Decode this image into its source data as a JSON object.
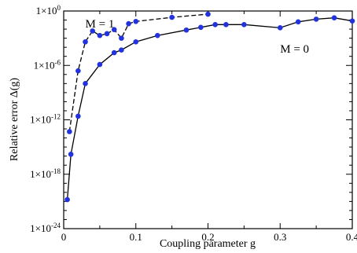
{
  "chart_data": {
    "type": "line",
    "xlabel": "Coupling parameter g",
    "ylabel": "Relative error Δ(g)",
    "xlim": [
      0,
      0.4
    ],
    "ylim_exponent": [
      -24,
      0
    ],
    "yscale": "log",
    "grid": false,
    "marker_color": "#2233dd",
    "x_ticks": [
      {
        "value": 0,
        "label": "0"
      },
      {
        "value": 0.1,
        "label": "0.1"
      },
      {
        "value": 0.2,
        "label": "0.2"
      },
      {
        "value": 0.3,
        "label": "0.3"
      },
      {
        "value": 0.4,
        "label": "0.4"
      }
    ],
    "y_ticks": [
      {
        "exp": 0,
        "base": "1×10",
        "sup": "0"
      },
      {
        "exp": -6,
        "base": "1×10",
        "sup": "-6"
      },
      {
        "exp": -12,
        "base": "1×10",
        "sup": "-12"
      },
      {
        "exp": -18,
        "base": "1×10",
        "sup": "-18"
      },
      {
        "exp": -24,
        "base": "1×10",
        "sup": "-24"
      }
    ],
    "series": [
      {
        "name": "M = 0",
        "line_style": "solid",
        "label_at": {
          "x": 0.3,
          "exp": -4.6
        },
        "x": [
          0.005,
          0.01,
          0.02,
          0.03,
          0.05,
          0.07,
          0.08,
          0.1,
          0.13,
          0.17,
          0.19,
          0.21,
          0.225,
          0.25,
          0.3,
          0.325,
          0.35,
          0.375,
          0.4
        ],
        "exp": [
          -20.8,
          -15.8,
          -11.6,
          -8.0,
          -5.9,
          -4.6,
          -4.3,
          -3.4,
          -2.7,
          -2.1,
          -1.8,
          -1.5,
          -1.5,
          -1.5,
          -1.85,
          -1.2,
          -0.9,
          -0.75,
          -1.1
        ]
      },
      {
        "name": "M = 1",
        "line_style": "dashed",
        "label_at": {
          "x": 0.03,
          "exp": -1.8
        },
        "x": [
          0.008,
          0.02,
          0.03,
          0.04,
          0.05,
          0.06,
          0.07,
          0.08,
          0.09,
          0.1,
          0.15,
          0.2
        ],
        "exp": [
          -13.3,
          -6.6,
          -3.4,
          -2.2,
          -2.7,
          -2.5,
          -2.05,
          -3.0,
          -1.4,
          -1.15,
          -0.7,
          -0.35
        ]
      }
    ]
  }
}
